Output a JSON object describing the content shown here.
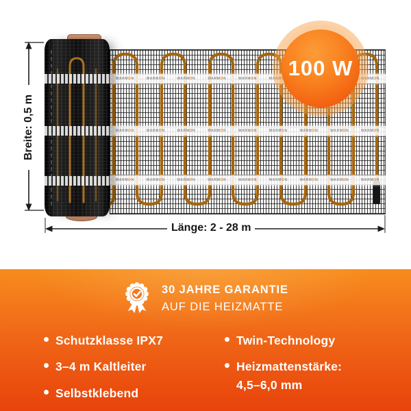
{
  "diagram": {
    "power_badge": "100 W",
    "width_label": "Breite: 0,5 m",
    "length_label": "Länge: 2 - 28 m",
    "tape_brand": "WARMON"
  },
  "guarantee": {
    "line1": "30 JAHRE GARANTIE",
    "line2": "AUF DIE HEIZMATTE"
  },
  "features": {
    "left": [
      "Schutzklasse IPX7",
      "3–4 m Kaltleiter",
      "Selbstklebend"
    ],
    "right": [
      "Twin-Technology",
      "Heizmattenstärke:\n4,5–6,0 mm"
    ]
  },
  "colors": {
    "accent_orange": "#F47A1F",
    "deep_orange": "#E8430B",
    "wire_orange": "#D9882A",
    "badge_gradient_start": "#FB9433",
    "badge_gradient_end": "#EE510C"
  }
}
